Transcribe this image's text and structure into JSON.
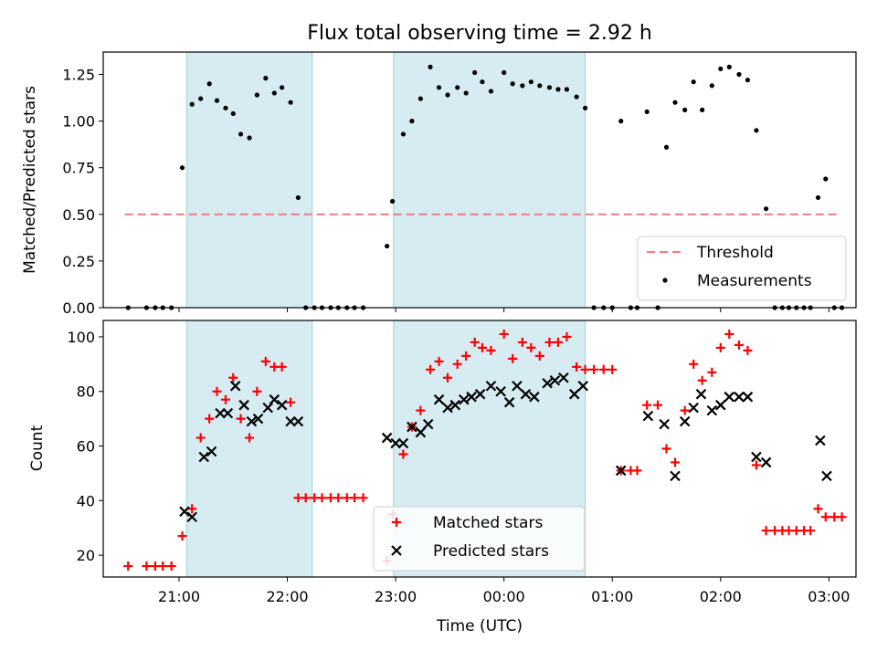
{
  "chart_data": [
    {
      "type": "scatter",
      "title": "Flux total observing time = 2.92 h",
      "xlabel": "",
      "ylabel": "Matched/Predicted stars",
      "xlim": [
        -0.7,
        6.25
      ],
      "ylim": [
        0,
        1.37
      ],
      "yticks": [
        0.0,
        0.25,
        0.5,
        0.75,
        1.0,
        1.25
      ],
      "ytick_labels": [
        "0.00",
        "0.25",
        "0.50",
        "0.75",
        "1.00",
        "1.25"
      ],
      "shaded_intervals": [
        [
          0.07,
          1.23
        ],
        [
          1.98,
          3.75
        ]
      ],
      "threshold": {
        "name": "Threshold",
        "value": 0.5,
        "x": [
          -0.5,
          6.1
        ],
        "color": "#f08080"
      },
      "series": [
        {
          "name": "Measurements",
          "color": "#000000",
          "points": [
            [
              -0.47,
              0
            ],
            [
              -0.3,
              0
            ],
            [
              -0.22,
              0
            ],
            [
              -0.15,
              0
            ],
            [
              -0.07,
              0
            ],
            [
              0.03,
              0.75
            ],
            [
              0.12,
              1.09
            ],
            [
              0.2,
              1.12
            ],
            [
              0.28,
              1.2
            ],
            [
              0.35,
              1.11
            ],
            [
              0.43,
              1.07
            ],
            [
              0.5,
              1.04
            ],
            [
              0.57,
              0.93
            ],
            [
              0.65,
              0.91
            ],
            [
              0.72,
              1.14
            ],
            [
              0.8,
              1.23
            ],
            [
              0.88,
              1.15
            ],
            [
              0.95,
              1.18
            ],
            [
              1.03,
              1.1
            ],
            [
              1.1,
              0.59
            ],
            [
              1.17,
              0
            ],
            [
              1.25,
              0
            ],
            [
              1.32,
              0
            ],
            [
              1.4,
              0
            ],
            [
              1.47,
              0
            ],
            [
              1.55,
              0
            ],
            [
              1.62,
              0
            ],
            [
              1.7,
              0
            ],
            [
              1.92,
              0.33
            ],
            [
              1.97,
              0.57
            ],
            [
              2.07,
              0.93
            ],
            [
              2.15,
              1.0
            ],
            [
              2.23,
              1.12
            ],
            [
              2.32,
              1.29
            ],
            [
              2.4,
              1.18
            ],
            [
              2.48,
              1.14
            ],
            [
              2.57,
              1.18
            ],
            [
              2.65,
              1.15
            ],
            [
              2.73,
              1.26
            ],
            [
              2.8,
              1.21
            ],
            [
              2.88,
              1.16
            ],
            [
              3.0,
              1.26
            ],
            [
              3.08,
              1.2
            ],
            [
              3.17,
              1.19
            ],
            [
              3.25,
              1.21
            ],
            [
              3.33,
              1.19
            ],
            [
              3.42,
              1.18
            ],
            [
              3.5,
              1.17
            ],
            [
              3.58,
              1.17
            ],
            [
              3.67,
              1.13
            ],
            [
              3.75,
              1.07
            ],
            [
              3.83,
              0
            ],
            [
              3.92,
              0
            ],
            [
              4.0,
              0
            ],
            [
              4.08,
              1.0
            ],
            [
              4.17,
              0
            ],
            [
              4.23,
              0
            ],
            [
              4.32,
              1.05
            ],
            [
              4.42,
              0
            ],
            [
              4.5,
              0.86
            ],
            [
              4.58,
              1.1
            ],
            [
              4.67,
              1.06
            ],
            [
              4.75,
              1.21
            ],
            [
              4.83,
              1.06
            ],
            [
              4.92,
              1.19
            ],
            [
              5.0,
              1.28
            ],
            [
              5.08,
              1.29
            ],
            [
              5.17,
              1.25
            ],
            [
              5.25,
              1.22
            ],
            [
              5.33,
              0.95
            ],
            [
              5.42,
              0.53
            ],
            [
              5.5,
              0
            ],
            [
              5.57,
              0
            ],
            [
              5.63,
              0
            ],
            [
              5.7,
              0
            ],
            [
              5.77,
              0
            ],
            [
              5.83,
              0
            ],
            [
              5.9,
              0.59
            ],
            [
              5.97,
              0.69
            ],
            [
              6.05,
              0
            ],
            [
              6.12,
              0
            ]
          ]
        }
      ],
      "legend": {
        "placement": "lower right",
        "entries": [
          "Threshold",
          "Measurements"
        ]
      }
    },
    {
      "type": "scatter",
      "title": "",
      "xlabel": "Time (UTC)",
      "ylabel": "Count",
      "xlim": [
        -0.7,
        6.25
      ],
      "ylim": [
        12,
        106
      ],
      "xticks": [
        0,
        1,
        2,
        3,
        4,
        5,
        6
      ],
      "xtick_labels": [
        "21:00",
        "22:00",
        "23:00",
        "00:00",
        "01:00",
        "02:00",
        "03:00"
      ],
      "yticks": [
        20,
        40,
        60,
        80,
        100
      ],
      "ytick_labels": [
        "20",
        "40",
        "60",
        "80",
        "100"
      ],
      "shaded_intervals": [
        [
          0.07,
          1.23
        ],
        [
          1.98,
          3.75
        ]
      ],
      "series": [
        {
          "name": "Matched stars",
          "marker": "plus",
          "color": "#ff0000",
          "points": [
            [
              -0.47,
              16
            ],
            [
              -0.3,
              16
            ],
            [
              -0.22,
              16
            ],
            [
              -0.15,
              16
            ],
            [
              -0.07,
              16
            ],
            [
              0.03,
              27
            ],
            [
              0.12,
              37
            ],
            [
              0.2,
              63
            ],
            [
              0.28,
              70
            ],
            [
              0.35,
              80
            ],
            [
              0.43,
              77
            ],
            [
              0.5,
              85
            ],
            [
              0.57,
              70
            ],
            [
              0.65,
              63
            ],
            [
              0.72,
              80
            ],
            [
              0.8,
              91
            ],
            [
              0.88,
              89
            ],
            [
              0.95,
              89
            ],
            [
              1.03,
              76
            ],
            [
              1.1,
              41
            ],
            [
              1.17,
              41
            ],
            [
              1.25,
              41
            ],
            [
              1.32,
              41
            ],
            [
              1.4,
              41
            ],
            [
              1.47,
              41
            ],
            [
              1.55,
              41
            ],
            [
              1.62,
              41
            ],
            [
              1.7,
              41
            ],
            [
              1.92,
              18
            ],
            [
              1.97,
              35
            ],
            [
              2.07,
              57
            ],
            [
              2.15,
              67
            ],
            [
              2.23,
              73
            ],
            [
              2.32,
              88
            ],
            [
              2.4,
              91
            ],
            [
              2.48,
              85
            ],
            [
              2.57,
              90
            ],
            [
              2.65,
              93
            ],
            [
              2.73,
              98
            ],
            [
              2.8,
              96
            ],
            [
              2.88,
              95
            ],
            [
              3.0,
              101
            ],
            [
              3.08,
              92
            ],
            [
              3.17,
              98
            ],
            [
              3.25,
              96
            ],
            [
              3.33,
              93
            ],
            [
              3.42,
              98
            ],
            [
              3.5,
              98
            ],
            [
              3.58,
              100
            ],
            [
              3.67,
              89
            ],
            [
              3.75,
              88
            ],
            [
              3.83,
              88
            ],
            [
              3.92,
              88
            ],
            [
              4.0,
              88
            ],
            [
              4.08,
              51
            ],
            [
              4.17,
              51
            ],
            [
              4.23,
              51
            ],
            [
              4.32,
              75
            ],
            [
              4.42,
              75
            ],
            [
              4.5,
              59
            ],
            [
              4.58,
              54
            ],
            [
              4.67,
              73
            ],
            [
              4.75,
              90
            ],
            [
              4.83,
              84
            ],
            [
              4.92,
              87
            ],
            [
              5.0,
              96
            ],
            [
              5.08,
              101
            ],
            [
              5.17,
              97
            ],
            [
              5.25,
              95
            ],
            [
              5.33,
              53
            ],
            [
              5.42,
              29
            ],
            [
              5.5,
              29
            ],
            [
              5.57,
              29
            ],
            [
              5.63,
              29
            ],
            [
              5.7,
              29
            ],
            [
              5.77,
              29
            ],
            [
              5.83,
              29
            ],
            [
              5.9,
              37
            ],
            [
              5.97,
              34
            ],
            [
              6.05,
              34
            ],
            [
              6.12,
              34
            ]
          ]
        },
        {
          "name": "Predicted stars",
          "marker": "x",
          "color": "#000000",
          "points": [
            [
              0.05,
              36
            ],
            [
              0.12,
              34
            ],
            [
              0.23,
              56
            ],
            [
              0.3,
              58
            ],
            [
              0.38,
              72
            ],
            [
              0.45,
              72
            ],
            [
              0.52,
              82
            ],
            [
              0.6,
              75
            ],
            [
              0.67,
              69
            ],
            [
              0.73,
              70
            ],
            [
              0.82,
              74
            ],
            [
              0.88,
              77
            ],
            [
              0.95,
              75
            ],
            [
              1.03,
              69
            ],
            [
              1.1,
              69
            ],
            [
              1.92,
              63
            ],
            [
              2.0,
              61
            ],
            [
              2.07,
              61
            ],
            [
              2.15,
              67
            ],
            [
              2.23,
              65
            ],
            [
              2.3,
              68
            ],
            [
              2.4,
              77
            ],
            [
              2.48,
              74
            ],
            [
              2.55,
              75
            ],
            [
              2.63,
              77
            ],
            [
              2.7,
              78
            ],
            [
              2.78,
              79
            ],
            [
              2.88,
              82
            ],
            [
              2.97,
              80
            ],
            [
              3.05,
              76
            ],
            [
              3.12,
              82
            ],
            [
              3.2,
              79
            ],
            [
              3.28,
              78
            ],
            [
              3.4,
              83
            ],
            [
              3.47,
              84
            ],
            [
              3.55,
              85
            ],
            [
              3.65,
              79
            ],
            [
              3.73,
              82
            ],
            [
              4.08,
              51
            ],
            [
              4.33,
              71
            ],
            [
              4.48,
              68
            ],
            [
              4.58,
              49
            ],
            [
              4.67,
              69
            ],
            [
              4.75,
              74
            ],
            [
              4.82,
              79
            ],
            [
              4.92,
              73
            ],
            [
              5.0,
              75
            ],
            [
              5.08,
              78
            ],
            [
              5.17,
              78
            ],
            [
              5.25,
              78
            ],
            [
              5.33,
              56
            ],
            [
              5.42,
              54
            ],
            [
              5.92,
              62
            ],
            [
              5.98,
              49
            ]
          ]
        }
      ],
      "legend": {
        "placement": "lower center",
        "entries": [
          "Matched stars",
          "Predicted stars"
        ]
      }
    }
  ]
}
